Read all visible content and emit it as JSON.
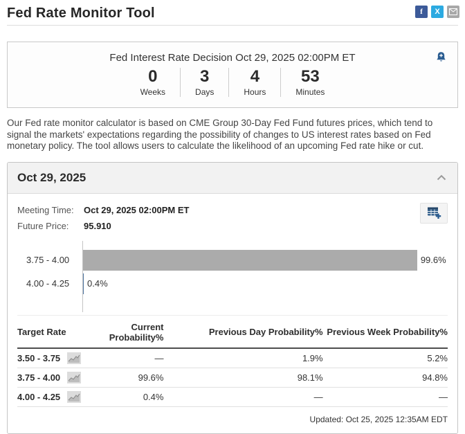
{
  "page": {
    "title": "Fed Rate Monitor Tool"
  },
  "social": {
    "facebook_label": "f",
    "twitter_label": "X",
    "colors": {
      "facebook": "#3c5a99",
      "twitter": "#2caae1",
      "email": "#a8a8a8"
    }
  },
  "countdown": {
    "title": "Fed Interest Rate Decision Oct 29, 2025 02:00PM ET",
    "units": [
      {
        "value": "0",
        "label": "Weeks"
      },
      {
        "value": "3",
        "label": "Days"
      },
      {
        "value": "4",
        "label": "Hours"
      },
      {
        "value": "53",
        "label": "Minutes"
      }
    ]
  },
  "description": "Our Fed rate monitor calculator is based on CME Group 30-Day Fed Fund futures prices, which tend to signal the markets' expectations regarding the possibility of changes to US interest rates based on Fed monetary policy. The tool allows users to calculate the likelihood of an upcoming Fed rate hike or cut.",
  "panel": {
    "header": "Oct 29, 2025",
    "meeting_time_label": "Meeting Time:",
    "meeting_time_value": "Oct 29, 2025 02:00PM ET",
    "future_price_label": "Future Price:",
    "future_price_value": "95.910",
    "updated": "Updated: Oct 25, 2025 12:35AM EDT"
  },
  "chart_data": {
    "type": "bar",
    "orientation": "horizontal",
    "categories": [
      "3.75 - 4.00",
      "4.00 - 4.25"
    ],
    "values": [
      99.6,
      0.4
    ],
    "value_labels": [
      "99.6%",
      "0.4%"
    ],
    "xlim": [
      0,
      100
    ],
    "bar_color": "#ababab",
    "small_bar_color": "#4d74a0",
    "grid": false,
    "legend": false
  },
  "table": {
    "headers": [
      "Target Rate",
      "Current Probability%",
      "Previous Day Probability%",
      "Previous Week Probability%"
    ],
    "rows": [
      {
        "target": "3.50 - 3.75",
        "current": "—",
        "prev_day": "1.9%",
        "prev_week": "5.2%"
      },
      {
        "target": "3.75 - 4.00",
        "current": "99.6%",
        "prev_day": "98.1%",
        "prev_week": "94.8%"
      },
      {
        "target": "4.00 - 4.25",
        "current": "0.4%",
        "prev_day": "—",
        "prev_week": "—"
      }
    ]
  }
}
